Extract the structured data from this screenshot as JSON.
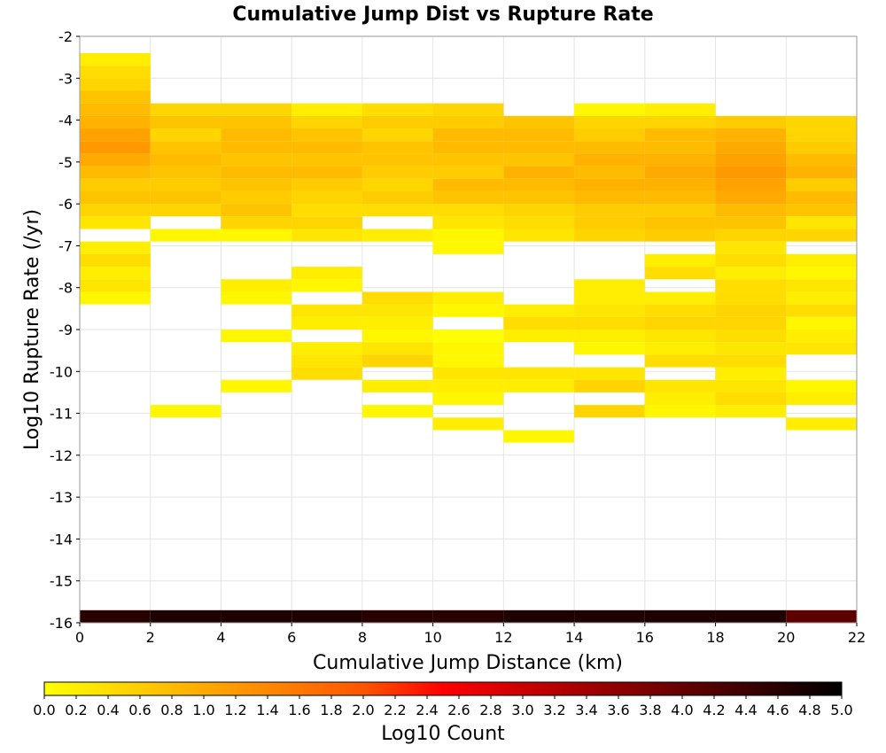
{
  "chart_data": {
    "type": "heatmap",
    "title": "Cumulative Jump Dist vs Rupture Rate",
    "xlabel": "Cumulative Jump Distance (km)",
    "ylabel": "Log10 Rupture Rate (/yr)",
    "xlim": [
      0,
      22
    ],
    "ylim": [
      -16,
      -2
    ],
    "x_ticks": [
      0,
      2,
      4,
      6,
      8,
      10,
      12,
      14,
      16,
      18,
      20,
      22
    ],
    "y_ticks": [
      -16,
      -15,
      -14,
      -13,
      -12,
      -11,
      -10,
      -9,
      -8,
      -7,
      -6,
      -5,
      -4,
      -3,
      -2
    ],
    "x_bin_width": 2,
    "y_bin_height": 0.3,
    "grid": true,
    "colorbar": {
      "label": "Log10 Count",
      "range": [
        0,
        5
      ],
      "ticks": [
        "0.0",
        "0.2",
        "0.4",
        "0.6",
        "0.8",
        "1.0",
        "1.2",
        "1.4",
        "1.6",
        "1.8",
        "2.0",
        "2.2",
        "2.4",
        "2.6",
        "2.8",
        "3.0",
        "3.2",
        "3.4",
        "3.6",
        "3.8",
        "4.0",
        "4.2",
        "4.4",
        "4.6",
        "4.8",
        "5.0"
      ],
      "colormap": [
        "#ffff00",
        "#ffaa00",
        "#ff5500",
        "#ff0000",
        "#990000",
        "#000000"
      ],
      "placement": "bottom"
    },
    "columns": [
      {
        "x_start": 0,
        "cells": [
          [
            -2.7,
            0.2
          ],
          [
            -3.0,
            0.4
          ],
          [
            -3.3,
            0.5
          ],
          [
            -3.6,
            0.7
          ],
          [
            -3.9,
            0.8
          ],
          [
            -4.2,
            0.9
          ],
          [
            -4.5,
            1.1
          ],
          [
            -4.8,
            1.2
          ],
          [
            -5.1,
            1.0
          ],
          [
            -5.4,
            0.8
          ],
          [
            -5.7,
            0.6
          ],
          [
            -6.0,
            0.7
          ],
          [
            -6.3,
            0.5
          ],
          [
            -6.6,
            0.3
          ],
          [
            -7.2,
            0.2
          ],
          [
            -7.5,
            0.4
          ],
          [
            -7.8,
            0.2
          ],
          [
            -8.1,
            0.3
          ],
          [
            -8.4,
            0.1
          ]
        ]
      },
      {
        "x_start": 2,
        "cells": [
          [
            -3.9,
            0.5
          ],
          [
            -4.2,
            0.7
          ],
          [
            -4.5,
            0.5
          ],
          [
            -4.8,
            0.7
          ],
          [
            -5.1,
            0.8
          ],
          [
            -5.4,
            0.7
          ],
          [
            -5.7,
            0.6
          ],
          [
            -6.0,
            0.7
          ],
          [
            -6.3,
            0.5
          ],
          [
            -6.9,
            0.1
          ],
          [
            -11.1,
            0.1
          ]
        ]
      },
      {
        "x_start": 4,
        "cells": [
          [
            -3.9,
            0.5
          ],
          [
            -4.2,
            0.7
          ],
          [
            -4.5,
            0.8
          ],
          [
            -4.8,
            0.8
          ],
          [
            -5.1,
            0.7
          ],
          [
            -5.4,
            0.8
          ],
          [
            -5.7,
            0.7
          ],
          [
            -6.0,
            0.6
          ],
          [
            -6.3,
            0.7
          ],
          [
            -6.6,
            0.5
          ],
          [
            -6.9,
            0.1
          ],
          [
            -8.1,
            0.2
          ],
          [
            -8.4,
            0.1
          ],
          [
            -9.3,
            0.1
          ],
          [
            -10.5,
            0.1
          ]
        ]
      },
      {
        "x_start": 6,
        "cells": [
          [
            -3.9,
            0.2
          ],
          [
            -4.2,
            0.5
          ],
          [
            -4.5,
            0.7
          ],
          [
            -4.8,
            0.8
          ],
          [
            -5.1,
            0.7
          ],
          [
            -5.4,
            0.8
          ],
          [
            -5.7,
            0.6
          ],
          [
            -6.0,
            0.5
          ],
          [
            -6.3,
            0.4
          ],
          [
            -6.6,
            0.5
          ],
          [
            -6.9,
            0.3
          ],
          [
            -7.8,
            0.2
          ],
          [
            -8.1,
            0.1
          ],
          [
            -8.7,
            0.3
          ],
          [
            -9.0,
            0.2
          ],
          [
            -9.6,
            0.2
          ],
          [
            -9.9,
            0.3
          ],
          [
            -10.2,
            0.4
          ]
        ]
      },
      {
        "x_start": 8,
        "cells": [
          [
            -3.9,
            0.4
          ],
          [
            -4.2,
            0.6
          ],
          [
            -4.5,
            0.5
          ],
          [
            -4.8,
            0.7
          ],
          [
            -5.1,
            0.7
          ],
          [
            -5.4,
            0.6
          ],
          [
            -5.7,
            0.5
          ],
          [
            -6.0,
            0.6
          ],
          [
            -6.3,
            0.4
          ],
          [
            -6.9,
            0.2
          ],
          [
            -8.4,
            0.4
          ],
          [
            -8.7,
            0.3
          ],
          [
            -9.0,
            0.2
          ],
          [
            -9.3,
            0.1
          ],
          [
            -9.6,
            0.3
          ],
          [
            -9.9,
            0.5
          ],
          [
            -10.5,
            0.2
          ],
          [
            -11.1,
            0.1
          ]
        ]
      },
      {
        "x_start": 10,
        "cells": [
          [
            -3.9,
            0.5
          ],
          [
            -4.2,
            0.6
          ],
          [
            -4.5,
            0.8
          ],
          [
            -4.8,
            0.8
          ],
          [
            -5.1,
            0.7
          ],
          [
            -5.4,
            0.6
          ],
          [
            -5.7,
            0.8
          ],
          [
            -6.0,
            0.7
          ],
          [
            -6.3,
            0.4
          ],
          [
            -6.6,
            0.3
          ],
          [
            -6.9,
            0.1
          ],
          [
            -7.2,
            0.1
          ],
          [
            -8.4,
            0.2
          ],
          [
            -8.7,
            0.1
          ],
          [
            -9.3,
            0.0
          ],
          [
            -9.6,
            0.1
          ],
          [
            -9.9,
            0.1
          ],
          [
            -10.2,
            0.3
          ],
          [
            -10.5,
            0.2
          ],
          [
            -10.8,
            0.1
          ],
          [
            -11.4,
            0.2
          ]
        ]
      },
      {
        "x_start": 12,
        "cells": [
          [
            -4.2,
            0.7
          ],
          [
            -4.5,
            0.8
          ],
          [
            -4.8,
            0.8
          ],
          [
            -5.1,
            0.7
          ],
          [
            -5.4,
            0.9
          ],
          [
            -5.7,
            0.8
          ],
          [
            -6.0,
            0.7
          ],
          [
            -6.3,
            0.5
          ],
          [
            -6.6,
            0.4
          ],
          [
            -6.9,
            0.3
          ],
          [
            -8.7,
            0.2
          ],
          [
            -9.0,
            0.4
          ],
          [
            -9.3,
            0.2
          ],
          [
            -10.2,
            0.3
          ],
          [
            -10.5,
            0.2
          ],
          [
            -11.7,
            0.1
          ]
        ]
      },
      {
        "x_start": 14,
        "cells": [
          [
            -3.9,
            0.1
          ],
          [
            -4.2,
            0.5
          ],
          [
            -4.5,
            0.6
          ],
          [
            -4.8,
            0.8
          ],
          [
            -5.1,
            0.9
          ],
          [
            -5.4,
            0.8
          ],
          [
            -5.7,
            0.9
          ],
          [
            -6.0,
            0.8
          ],
          [
            -6.3,
            0.6
          ],
          [
            -6.6,
            0.6
          ],
          [
            -6.9,
            0.5
          ],
          [
            -8.1,
            0.2
          ],
          [
            -8.4,
            0.2
          ],
          [
            -8.7,
            0.3
          ],
          [
            -9.0,
            0.4
          ],
          [
            -9.3,
            0.2
          ],
          [
            -9.6,
            0.1
          ],
          [
            -10.2,
            0.3
          ],
          [
            -10.5,
            0.5
          ],
          [
            -11.1,
            0.5
          ]
        ]
      },
      {
        "x_start": 16,
        "cells": [
          [
            -3.9,
            0.2
          ],
          [
            -4.2,
            0.5
          ],
          [
            -4.5,
            0.8
          ],
          [
            -4.8,
            0.8
          ],
          [
            -5.1,
            0.9
          ],
          [
            -5.4,
            1.0
          ],
          [
            -5.7,
            0.9
          ],
          [
            -6.0,
            0.8
          ],
          [
            -6.3,
            0.6
          ],
          [
            -6.6,
            0.7
          ],
          [
            -6.9,
            0.6
          ],
          [
            -7.5,
            0.2
          ],
          [
            -7.8,
            0.4
          ],
          [
            -8.4,
            0.2
          ],
          [
            -8.7,
            0.4
          ],
          [
            -9.0,
            0.5
          ],
          [
            -9.3,
            0.3
          ],
          [
            -9.6,
            0.2
          ],
          [
            -9.9,
            0.4
          ],
          [
            -10.5,
            0.3
          ],
          [
            -10.8,
            0.2
          ],
          [
            -11.1,
            0.1
          ]
        ]
      },
      {
        "x_start": 18,
        "cells": [
          [
            -4.2,
            0.6
          ],
          [
            -4.5,
            0.9
          ],
          [
            -4.8,
            1.0
          ],
          [
            -5.1,
            1.1
          ],
          [
            -5.4,
            1.2
          ],
          [
            -5.7,
            1.1
          ],
          [
            -6.0,
            1.0
          ],
          [
            -6.3,
            0.8
          ],
          [
            -6.6,
            0.7
          ],
          [
            -6.9,
            0.5
          ],
          [
            -7.2,
            0.3
          ],
          [
            -7.5,
            0.4
          ],
          [
            -7.8,
            0.2
          ],
          [
            -8.1,
            0.4
          ],
          [
            -8.4,
            0.4
          ],
          [
            -8.7,
            0.5
          ],
          [
            -9.0,
            0.5
          ],
          [
            -9.3,
            0.4
          ],
          [
            -9.6,
            0.3
          ],
          [
            -9.9,
            0.4
          ],
          [
            -10.2,
            0.2
          ],
          [
            -10.5,
            0.3
          ],
          [
            -10.8,
            0.4
          ],
          [
            -11.1,
            0.2
          ]
        ]
      },
      {
        "x_start": 20,
        "cells": [
          [
            -4.2,
            0.5
          ],
          [
            -4.5,
            0.5
          ],
          [
            -4.8,
            0.6
          ],
          [
            -5.1,
            0.8
          ],
          [
            -5.4,
            0.9
          ],
          [
            -5.7,
            0.6
          ],
          [
            -6.0,
            0.8
          ],
          [
            -6.3,
            0.7
          ],
          [
            -6.6,
            0.3
          ],
          [
            -6.9,
            0.5
          ],
          [
            -7.5,
            0.2
          ],
          [
            -7.8,
            0.1
          ],
          [
            -8.1,
            0.3
          ],
          [
            -8.4,
            0.2
          ],
          [
            -8.7,
            0.4
          ],
          [
            -9.0,
            0.1
          ],
          [
            -9.3,
            0.2
          ],
          [
            -9.6,
            0.3
          ],
          [
            -10.5,
            0.1
          ],
          [
            -10.8,
            0.2
          ],
          [
            -11.4,
            0.2
          ]
        ]
      }
    ],
    "bottom_row": {
      "y_start": -16.0,
      "values": [
        4.6,
        4.7,
        4.7,
        4.7,
        4.6,
        4.6,
        4.7,
        4.7,
        4.7,
        4.7,
        4.1
      ]
    }
  }
}
